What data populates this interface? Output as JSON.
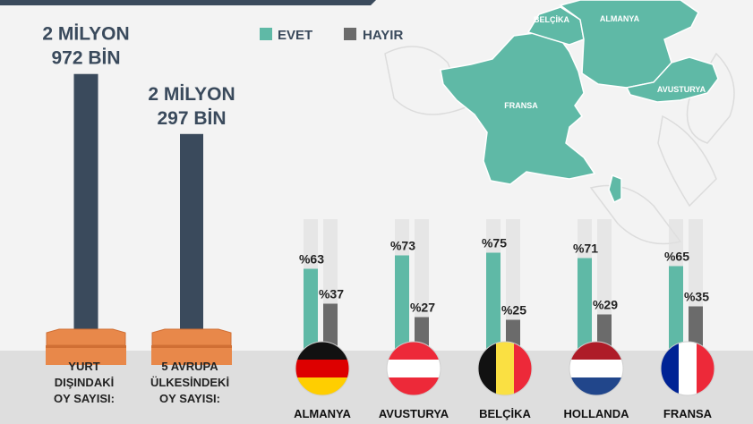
{
  "colors": {
    "evet": "#5fb9a6",
    "hayir": "#6b6b6b",
    "dark_bar": "#3a4a5c",
    "ballot_box": "#e8884a",
    "map_land": "#5fb9a6",
    "track": "#e0e0e0"
  },
  "legend": {
    "evet": "EVET",
    "hayir": "HAYIR"
  },
  "map_labels": {
    "belcika": "BELÇİKA",
    "almanya": "ALMANYA",
    "fransa": "FRANSA",
    "avusturya": "AVUSTURYA"
  },
  "chart_data": [
    {
      "type": "bar",
      "categories": [
        "YURT DIŞINDAKİ OY SAYISI:",
        "5 AVRUPA ÜLKESİNDEKİ OY SAYISI:"
      ],
      "category_lines": [
        [
          "YURT",
          "DIŞINDAKİ",
          "OY SAYISI:"
        ],
        [
          "5 AVRUPA",
          "ÜLKESİNDEKİ",
          "OY SAYISI:"
        ]
      ],
      "values": [
        2972000,
        2297000
      ],
      "value_labels": [
        [
          "2 MİLYON",
          "972 BİN"
        ],
        [
          "2 MİLYON",
          "297 BİN"
        ]
      ],
      "ylim": [
        0,
        3100000
      ]
    },
    {
      "type": "bar",
      "categories": [
        "ALMANYA",
        "AVUSTURYA",
        "BELÇİKA",
        "HOLLANDA",
        "FRANSA"
      ],
      "series": [
        {
          "name": "EVET",
          "values": [
            63,
            73,
            75,
            71,
            65
          ],
          "labels": [
            "%63",
            "%73",
            "%75",
            "%71",
            "%65"
          ]
        },
        {
          "name": "HAYIR",
          "values": [
            37,
            27,
            25,
            29,
            35
          ],
          "labels": [
            "%37",
            "%27",
            "%25",
            "%29",
            "%35"
          ]
        }
      ],
      "ylim": [
        0,
        100
      ],
      "flags": [
        "germany-flag",
        "austria-flag",
        "belgium-flag",
        "netherlands-flag",
        "france-flag"
      ]
    }
  ]
}
